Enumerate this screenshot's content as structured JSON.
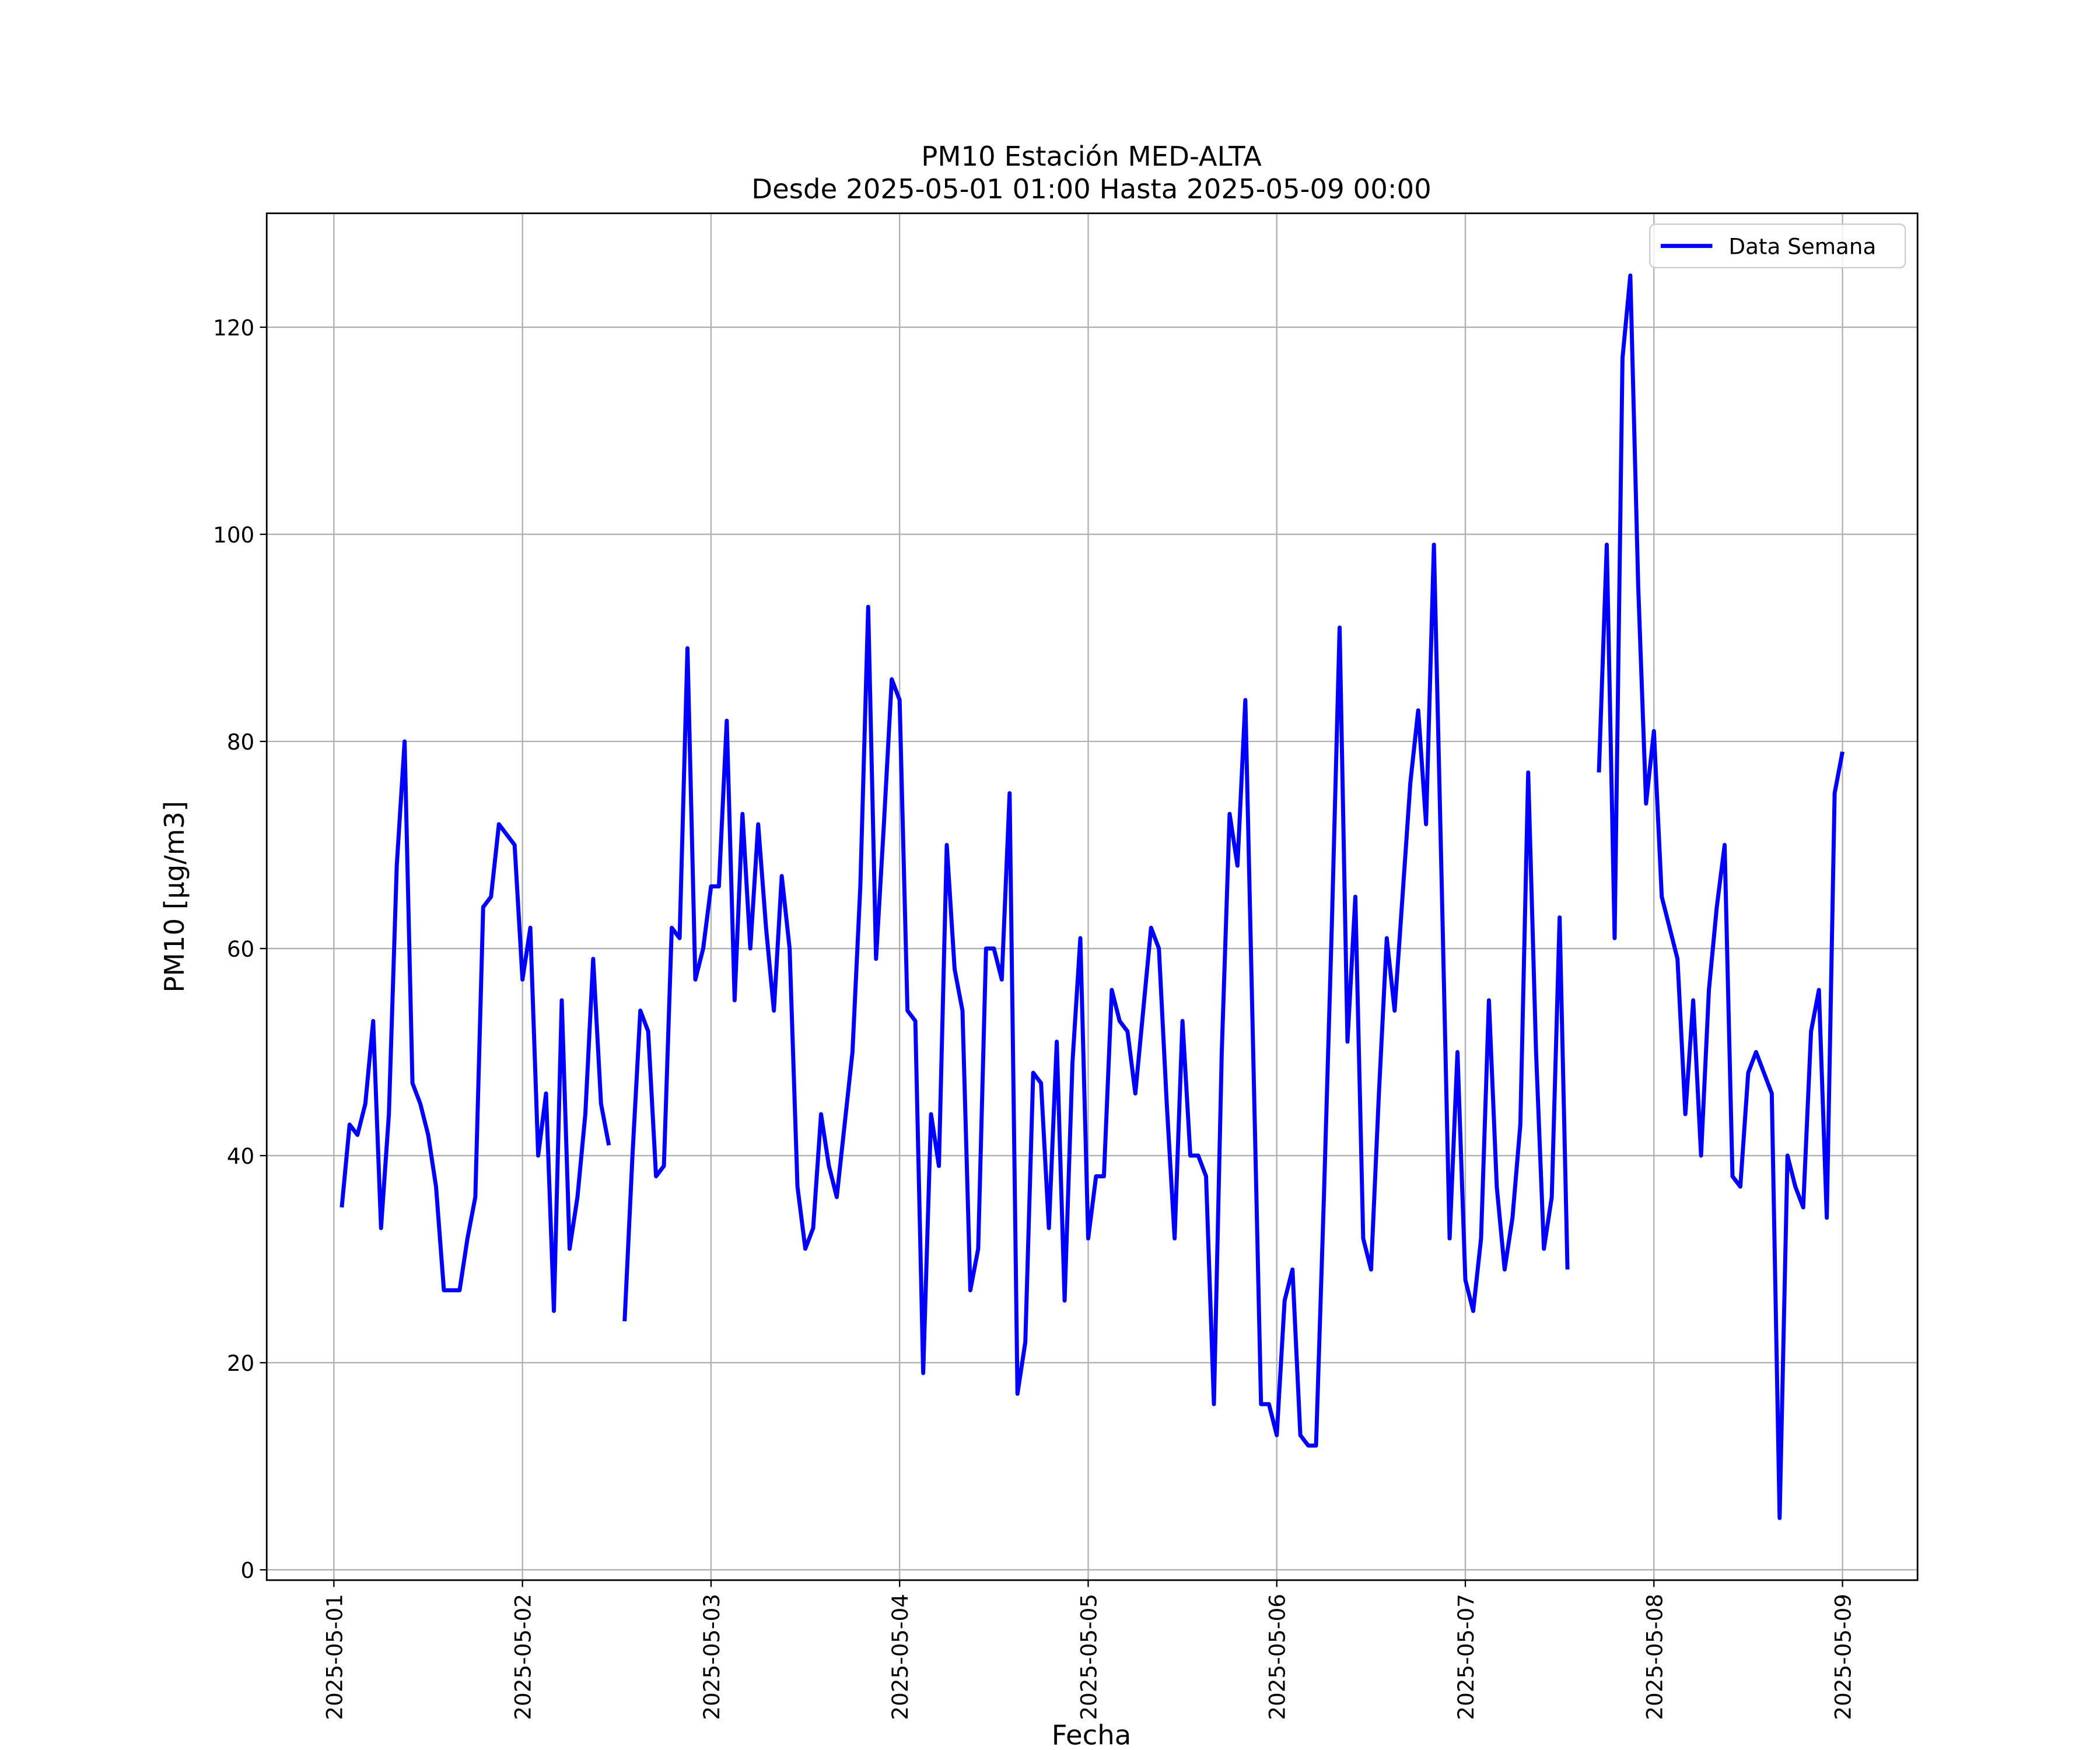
{
  "chart_data": {
    "type": "line",
    "title": "PM10 Estación MED-ALTA",
    "subtitle": "Desde 2025-05-01 01:00 Hasta 2025-05-09 00:00",
    "x_label": "Fecha",
    "y_label": "PM10 [μg/m3]",
    "legend_position": "upper right",
    "grid": true,
    "xlim": [
      "2025-04-30 15:27",
      "2025-05-09 09:33"
    ],
    "xticks": [
      "2025-05-01",
      "2025-05-02",
      "2025-05-03",
      "2025-05-04",
      "2025-05-05",
      "2025-05-06",
      "2025-05-07",
      "2025-05-08",
      "2025-05-09"
    ],
    "ylim": [
      -1,
      131
    ],
    "yticks": [
      0,
      20,
      40,
      60,
      80,
      100,
      120
    ],
    "x": [
      "2025-05-01 01:00",
      "2025-05-01 02:00",
      "2025-05-01 03:00",
      "2025-05-01 04:00",
      "2025-05-01 05:00",
      "2025-05-01 06:00",
      "2025-05-01 07:00",
      "2025-05-01 08:00",
      "2025-05-01 09:00",
      "2025-05-01 10:00",
      "2025-05-01 11:00",
      "2025-05-01 12:00",
      "2025-05-01 13:00",
      "2025-05-01 14:00",
      "2025-05-01 15:00",
      "2025-05-01 16:00",
      "2025-05-01 17:00",
      "2025-05-01 18:00",
      "2025-05-01 19:00",
      "2025-05-01 20:00",
      "2025-05-01 21:00",
      "2025-05-01 22:00",
      "2025-05-01 23:00",
      "2025-05-02 00:00",
      "2025-05-02 01:00",
      "2025-05-02 02:00",
      "2025-05-02 03:00",
      "2025-05-02 04:00",
      "2025-05-02 05:00",
      "2025-05-02 06:00",
      "2025-05-02 07:00",
      "2025-05-02 08:00",
      "2025-05-02 09:00",
      "2025-05-02 10:00",
      "2025-05-02 11:00",
      "2025-05-02 12:00",
      "2025-05-02 13:00",
      "2025-05-02 14:00",
      "2025-05-02 15:00",
      "2025-05-02 16:00",
      "2025-05-02 17:00",
      "2025-05-02 18:00",
      "2025-05-02 19:00",
      "2025-05-02 20:00",
      "2025-05-02 21:00",
      "2025-05-02 22:00",
      "2025-05-02 23:00",
      "2025-05-03 00:00",
      "2025-05-03 01:00",
      "2025-05-03 02:00",
      "2025-05-03 03:00",
      "2025-05-03 04:00",
      "2025-05-03 05:00",
      "2025-05-03 06:00",
      "2025-05-03 07:00",
      "2025-05-03 08:00",
      "2025-05-03 09:00",
      "2025-05-03 10:00",
      "2025-05-03 11:00",
      "2025-05-03 12:00",
      "2025-05-03 13:00",
      "2025-05-03 14:00",
      "2025-05-03 15:00",
      "2025-05-03 16:00",
      "2025-05-03 17:00",
      "2025-05-03 18:00",
      "2025-05-03 19:00",
      "2025-05-03 20:00",
      "2025-05-03 21:00",
      "2025-05-03 22:00",
      "2025-05-03 23:00",
      "2025-05-04 00:00",
      "2025-05-04 01:00",
      "2025-05-04 02:00",
      "2025-05-04 03:00",
      "2025-05-04 04:00",
      "2025-05-04 05:00",
      "2025-05-04 06:00",
      "2025-05-04 07:00",
      "2025-05-04 08:00",
      "2025-05-04 09:00",
      "2025-05-04 10:00",
      "2025-05-04 11:00",
      "2025-05-04 12:00",
      "2025-05-04 13:00",
      "2025-05-04 14:00",
      "2025-05-04 15:00",
      "2025-05-04 16:00",
      "2025-05-04 17:00",
      "2025-05-04 18:00",
      "2025-05-04 19:00",
      "2025-05-04 20:00",
      "2025-05-04 21:00",
      "2025-05-04 22:00",
      "2025-05-04 23:00",
      "2025-05-05 00:00",
      "2025-05-05 01:00",
      "2025-05-05 02:00",
      "2025-05-05 03:00",
      "2025-05-05 04:00",
      "2025-05-05 05:00",
      "2025-05-05 06:00",
      "2025-05-05 07:00",
      "2025-05-05 08:00",
      "2025-05-05 09:00",
      "2025-05-05 10:00",
      "2025-05-05 11:00",
      "2025-05-05 12:00",
      "2025-05-05 13:00",
      "2025-05-05 14:00",
      "2025-05-05 15:00",
      "2025-05-05 16:00",
      "2025-05-05 17:00",
      "2025-05-05 18:00",
      "2025-05-05 19:00",
      "2025-05-05 20:00",
      "2025-05-05 21:00",
      "2025-05-05 22:00",
      "2025-05-05 23:00",
      "2025-05-06 00:00",
      "2025-05-06 01:00",
      "2025-05-06 02:00",
      "2025-05-06 03:00",
      "2025-05-06 04:00",
      "2025-05-06 05:00",
      "2025-05-06 06:00",
      "2025-05-06 07:00",
      "2025-05-06 08:00",
      "2025-05-06 09:00",
      "2025-05-06 10:00",
      "2025-05-06 11:00",
      "2025-05-06 12:00",
      "2025-05-06 13:00",
      "2025-05-06 14:00",
      "2025-05-06 15:00",
      "2025-05-06 16:00",
      "2025-05-06 17:00",
      "2025-05-06 18:00",
      "2025-05-06 19:00",
      "2025-05-06 20:00",
      "2025-05-06 21:00",
      "2025-05-06 22:00",
      "2025-05-06 23:00",
      "2025-05-07 00:00",
      "2025-05-07 01:00",
      "2025-05-07 02:00",
      "2025-05-07 03:00",
      "2025-05-07 04:00",
      "2025-05-07 05:00",
      "2025-05-07 06:00",
      "2025-05-07 07:00",
      "2025-05-07 08:00",
      "2025-05-07 09:00",
      "2025-05-07 10:00",
      "2025-05-07 11:00",
      "2025-05-07 12:00",
      "2025-05-07 13:00",
      "2025-05-07 14:00",
      "2025-05-07 15:00",
      "2025-05-07 16:00",
      "2025-05-07 17:00",
      "2025-05-07 18:00",
      "2025-05-07 19:00",
      "2025-05-07 20:00",
      "2025-05-07 21:00",
      "2025-05-07 22:00",
      "2025-05-07 23:00",
      "2025-05-08 00:00",
      "2025-05-08 01:00",
      "2025-05-08 02:00",
      "2025-05-08 03:00",
      "2025-05-08 04:00",
      "2025-05-08 05:00",
      "2025-05-08 06:00",
      "2025-05-08 07:00",
      "2025-05-08 08:00",
      "2025-05-08 09:00",
      "2025-05-08 10:00",
      "2025-05-08 11:00",
      "2025-05-08 12:00",
      "2025-05-08 13:00",
      "2025-05-08 14:00",
      "2025-05-08 15:00",
      "2025-05-08 16:00",
      "2025-05-08 17:00",
      "2025-05-08 18:00",
      "2025-05-08 19:00",
      "2025-05-08 20:00",
      "2025-05-08 21:00",
      "2025-05-08 22:00",
      "2025-05-08 23:00",
      "2025-05-09 00:00"
    ],
    "series": [
      {
        "name": "Data Semana",
        "color": "#0000ff",
        "values": [
          35,
          43,
          42,
          45,
          53,
          33,
          44,
          68,
          80,
          47,
          45,
          42,
          37,
          27,
          27,
          27,
          32,
          36,
          64,
          65,
          72,
          71,
          70,
          57,
          62,
          40,
          46,
          25,
          55,
          31,
          36,
          44,
          59,
          45,
          41,
          null,
          24,
          40,
          54,
          52,
          38,
          39,
          62,
          61,
          89,
          57,
          60,
          66,
          66,
          82,
          55,
          73,
          60,
          72,
          62,
          54,
          67,
          60,
          37,
          31,
          33,
          44,
          39,
          36,
          43,
          50,
          66,
          93,
          59,
          72,
          86,
          84,
          54,
          53,
          19,
          44,
          39,
          70,
          58,
          54,
          27,
          31,
          60,
          60,
          57,
          75,
          17,
          22,
          48,
          47,
          33,
          51,
          26,
          49,
          61,
          32,
          38,
          38,
          56,
          53,
          52,
          46,
          54,
          62,
          60,
          45,
          32,
          53,
          40,
          40,
          38,
          16,
          50,
          73,
          68,
          84,
          50,
          16,
          16,
          13,
          26,
          29,
          13,
          12,
          12,
          36,
          62,
          91,
          51,
          65,
          32,
          29,
          46,
          61,
          54,
          65,
          76,
          83,
          72,
          99,
          66,
          32,
          50,
          28,
          25,
          32,
          55,
          37,
          29,
          34,
          43,
          77,
          50,
          31,
          36,
          63,
          29,
          null,
          null,
          null,
          77,
          99,
          61,
          117,
          125,
          95,
          74,
          81,
          65,
          62,
          59,
          44,
          55,
          40,
          56,
          64,
          70,
          38,
          37,
          48,
          50,
          48,
          46,
          5,
          40,
          37,
          35,
          52,
          56,
          34,
          75,
          79
        ]
      }
    ]
  }
}
